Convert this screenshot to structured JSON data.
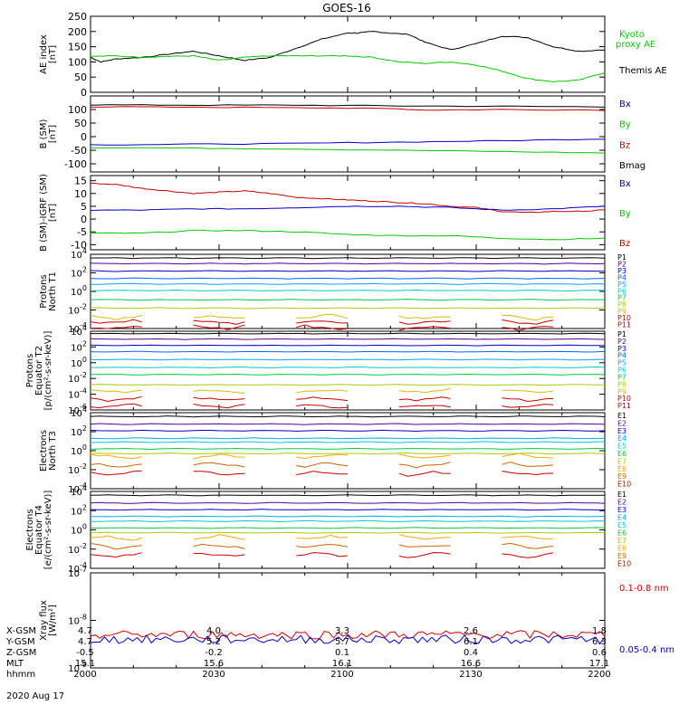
{
  "title": "GOES-16",
  "colors": {
    "black": "#000000",
    "red": "#dd0000",
    "green": "#00cc00",
    "blue": "#0000cc",
    "kyoto": "#00cc00",
    "p_palette": [
      "#000000",
      "#5a0090",
      "#0000cc",
      "#0066ff",
      "#00aaff",
      "#00cccc",
      "#00cc44",
      "#aacc00",
      "#ddbb00",
      "#cc0000",
      "#cc0000"
    ],
    "e_palette": [
      "#000000",
      "#5a0090",
      "#0000cc",
      "#00aaff",
      "#00cccc",
      "#00cc44",
      "#aacc00",
      "#ffaa00",
      "#cc6600",
      "#cc0000"
    ]
  },
  "chart_data": [
    {
      "id": "ae",
      "type": "line",
      "ylabel": [
        "AE index",
        "[nT]"
      ],
      "ylim": [
        0,
        250
      ],
      "yticks": [
        "250",
        "200",
        "150",
        "100",
        "50",
        "0"
      ],
      "legend": [
        {
          "label": "Kyoto",
          "color": "#00cc00"
        },
        {
          "label": "proxy AE",
          "color": "#00cc00"
        },
        {
          "label": "Themis AE",
          "color": "#000000"
        }
      ],
      "series": [
        {
          "name": "Themis AE",
          "color": "#000000",
          "x": [
            0,
            2,
            5,
            10,
            15,
            20,
            25,
            30,
            35,
            40,
            45,
            50,
            52,
            55,
            58,
            62,
            65,
            70,
            75,
            80,
            85,
            90,
            95,
            100
          ],
          "values": [
            115,
            100,
            110,
            115,
            125,
            135,
            120,
            105,
            115,
            145,
            175,
            195,
            195,
            200,
            195,
            190,
            165,
            140,
            160,
            185,
            180,
            150,
            135,
            140
          ]
        },
        {
          "name": "Kyoto proxy AE",
          "color": "#00cc00",
          "x": [
            0,
            5,
            10,
            15,
            20,
            25,
            30,
            35,
            40,
            45,
            50,
            55,
            60,
            65,
            70,
            75,
            80,
            85,
            90,
            95,
            100
          ],
          "values": [
            118,
            120,
            115,
            118,
            120,
            105,
            115,
            120,
            120,
            120,
            120,
            115,
            100,
            95,
            100,
            90,
            70,
            45,
            35,
            40,
            65
          ]
        }
      ]
    },
    {
      "id": "bsm",
      "type": "line",
      "ylabel": [
        "B (SM)",
        "[nT]"
      ],
      "ylim": [
        -130,
        150
      ],
      "yticks": [
        "100",
        "50",
        "0",
        "-50",
        "-100"
      ],
      "legend": [
        {
          "label": "Bx",
          "color": "#0000cc"
        },
        {
          "label": "By",
          "color": "#00cc00"
        },
        {
          "label": "Bz",
          "color": "#cc0000"
        },
        {
          "label": "Bmag",
          "color": "#000000"
        }
      ],
      "series": [
        {
          "name": "Bmag",
          "color": "#000000",
          "x": [
            0,
            20,
            40,
            60,
            80,
            100
          ],
          "values": [
            117,
            116,
            116,
            113,
            112,
            110
          ]
        },
        {
          "name": "Bz",
          "color": "#cc0000",
          "x": [
            0,
            20,
            40,
            60,
            65,
            80,
            100
          ],
          "values": [
            110,
            108,
            108,
            102,
            98,
            100,
            98
          ]
        },
        {
          "name": "Bx",
          "color": "#0000cc",
          "x": [
            0,
            20,
            40,
            60,
            80,
            100
          ],
          "values": [
            -30,
            -28,
            -25,
            -20,
            -15,
            -8
          ]
        },
        {
          "name": "By",
          "color": "#00cc00",
          "x": [
            0,
            20,
            40,
            60,
            80,
            100
          ],
          "values": [
            -40,
            -42,
            -45,
            -50,
            -55,
            -60
          ]
        }
      ]
    },
    {
      "id": "bigrf",
      "type": "line",
      "ylabel": [
        "B (SM)-IGRF (SM)",
        "[nT]"
      ],
      "ylim": [
        -12,
        17
      ],
      "yticks": [
        "15",
        "10",
        "5",
        "0",
        "-5",
        "-10"
      ],
      "legend": [
        {
          "label": "Bx",
          "color": "#0000cc"
        },
        {
          "label": "By",
          "color": "#00cc00"
        },
        {
          "label": "Bz",
          "color": "#cc0000"
        }
      ],
      "series": [
        {
          "name": "Bz",
          "color": "#cc0000",
          "x": [
            0,
            5,
            10,
            15,
            20,
            25,
            30,
            35,
            40,
            45,
            50,
            55,
            60,
            65,
            70,
            75,
            80,
            85,
            90,
            95,
            100
          ],
          "values": [
            14,
            13.5,
            12,
            11,
            10,
            10.5,
            11,
            10,
            8.5,
            8,
            7.5,
            7,
            6.5,
            6,
            5,
            4.5,
            3,
            2.5,
            3,
            3,
            3.5
          ]
        },
        {
          "name": "Bx",
          "color": "#0000cc",
          "x": [
            0,
            10,
            20,
            30,
            40,
            50,
            60,
            70,
            80,
            90,
            100
          ],
          "values": [
            3.5,
            3.5,
            4,
            4,
            4.5,
            5,
            5,
            4.5,
            3.5,
            4,
            5
          ]
        },
        {
          "name": "By",
          "color": "#00cc00",
          "x": [
            0,
            10,
            20,
            30,
            40,
            50,
            60,
            70,
            80,
            90,
            100
          ],
          "values": [
            -5.5,
            -5.5,
            -4.5,
            -4.5,
            -5,
            -6,
            -6.5,
            -6.5,
            -7.5,
            -8,
            -7.5
          ]
        }
      ]
    },
    {
      "id": "pn",
      "type": "line",
      "ylog": true,
      "ylabel": [
        "Protons",
        "North T1"
      ],
      "ylim": [
        -4,
        4
      ],
      "yticks": [
        "10^4",
        "10^2",
        "10^0",
        "10^-2",
        "10^-4"
      ],
      "legend": [
        "P1",
        "P2",
        "P3",
        "P4",
        "P5",
        "P6",
        "P7",
        "P8",
        "P9",
        "P10",
        "P11"
      ],
      "levels_log10": [
        3.6,
        3.0,
        2.2,
        1.4,
        0.8,
        0.1,
        -0.9,
        -1.8,
        -2.8,
        -3.3,
        -3.9
      ]
    },
    {
      "id": "pe",
      "type": "line",
      "ylog": true,
      "ylabel": [
        "Protons",
        "Equator T2",
        "[p/(cm²-s-sr-keV)]"
      ],
      "ylim": [
        -6,
        4
      ],
      "yticks": [
        "10^4",
        "10^2",
        "10^0",
        "10^-2",
        "10^-4",
        "10^-6"
      ],
      "legend": [
        "P1",
        "P2",
        "P3",
        "P4",
        "P5",
        "P6",
        "P7",
        "P8",
        "P9",
        "P10",
        "P11"
      ],
      "levels_log10": [
        3.7,
        3.0,
        2.2,
        1.4,
        0.4,
        -0.6,
        -1.5,
        -2.8,
        -3.6,
        -4.6,
        -5.5
      ]
    },
    {
      "id": "en",
      "type": "line",
      "ylog": true,
      "ylabel": [
        "Electrons",
        "North T3"
      ],
      "ylim": [
        -4,
        4
      ],
      "yticks": [
        "10^4",
        "10^2",
        "10^0",
        "10^-2",
        "10^-4"
      ],
      "legend": [
        "E1",
        "E2",
        "E3",
        "E4",
        "E5",
        "E6",
        "E7",
        "E8",
        "E9",
        "E10"
      ],
      "levels_log10": [
        3.6,
        2.8,
        2.1,
        1.3,
        0.9,
        0.2,
        -0.3,
        -0.6,
        -1.5,
        -2.4
      ]
    },
    {
      "id": "ee",
      "type": "line",
      "ylog": true,
      "ylabel": [
        "Electrons",
        "Equator T4",
        "[e/(cm²-s-sr-keV)]"
      ],
      "ylim": [
        -4,
        4
      ],
      "yticks": [
        "10^4",
        "10^2",
        "10^0",
        "10^-2",
        "10^-4"
      ],
      "legend": [
        "E1",
        "E2",
        "E3",
        "E4",
        "E5",
        "E6",
        "E7",
        "E8",
        "E9",
        "E10"
      ],
      "levels_log10": [
        3.6,
        2.8,
        2.1,
        1.4,
        0.9,
        0.2,
        -0.3,
        -0.8,
        -1.7,
        -2.6
      ]
    },
    {
      "id": "xray",
      "type": "line",
      "ylog": true,
      "ylabel": [
        "Xray flux",
        "[W/m²]"
      ],
      "ylim": [
        -9,
        -7
      ],
      "yticks": [
        "10^-7",
        "10^-8",
        "10^-9"
      ],
      "legend": [
        {
          "label": "0.1-0.8 nm",
          "color": "#dd0000"
        },
        {
          "label": "0.05-0.4 nm",
          "color": "#0000cc"
        }
      ],
      "series": [
        {
          "name": "0.1-0.8 nm",
          "color": "#dd0000",
          "level_log10": -8.3,
          "noise": 0.09
        },
        {
          "name": "0.05-0.4 nm",
          "color": "#0000cc",
          "level_log10": -8.4,
          "noise": 0.09
        }
      ]
    }
  ],
  "ephemeris": {
    "row_labels": [
      "X-GSM",
      "Y-GSM",
      "Z-GSM",
      "MLT",
      "hhmm"
    ],
    "date": "2020 Aug 17",
    "columns": [
      {
        "x_gsm": "4.7",
        "y_gsm": "4.7",
        "z_gsm": "-0.5",
        "mlt": "15.1",
        "hhmm": "2000"
      },
      {
        "x_gsm": "4.0",
        "y_gsm": "5.2",
        "z_gsm": "-0.2",
        "mlt": "15.6",
        "hhmm": "2030"
      },
      {
        "x_gsm": "3.3",
        "y_gsm": "5.7",
        "z_gsm": "0.1",
        "mlt": "16.1",
        "hhmm": "2100"
      },
      {
        "x_gsm": "2.6",
        "y_gsm": "6.1",
        "z_gsm": "0.4",
        "mlt": "16.6",
        "hhmm": "2130"
      },
      {
        "x_gsm": "1.8",
        "y_gsm": "6.3",
        "z_gsm": "0.6",
        "mlt": "17.1",
        "hhmm": "2200"
      }
    ]
  }
}
